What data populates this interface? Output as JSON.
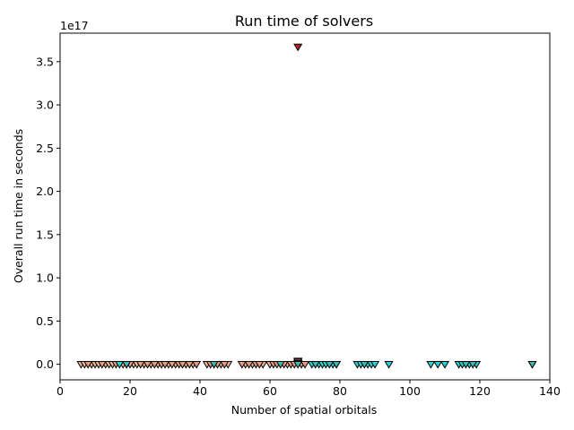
{
  "chart_data": {
    "type": "scatter",
    "title": "Run time of solvers",
    "xlabel": "Number of spatial orbitals",
    "ylabel": "Overall run time in seconds",
    "y_multiplier_label": "1e17",
    "xlim": [
      0,
      140
    ],
    "ylim": [
      -0.18,
      3.83
    ],
    "x_ticks": [
      0,
      20,
      40,
      60,
      80,
      100,
      120,
      140
    ],
    "y_ticks": [
      0.0,
      0.5,
      1.0,
      1.5,
      2.0,
      2.5,
      3.0,
      3.5
    ],
    "x_tick_labels": [
      "0",
      "20",
      "40",
      "60",
      "80",
      "100",
      "120",
      "140"
    ],
    "y_tick_labels": [
      "0.0",
      "0.5",
      "1.0",
      "1.5",
      "2.0",
      "2.5",
      "3.0",
      "3.5"
    ],
    "grid": false,
    "legend": "none",
    "marker": "triangle-down",
    "colors": {
      "light_salmon": "#f0b49a",
      "salmon": "#e39a80",
      "red_brown": "#c8553c",
      "dark_red": "#b42323",
      "cyan": "#2ad4d4",
      "teal": "#3fb8b2",
      "edge": "#000000"
    },
    "series": [
      {
        "color": "light_salmon",
        "points": [
          [
            6,
            0
          ],
          [
            7,
            0
          ],
          [
            9,
            0
          ],
          [
            10,
            0
          ],
          [
            11,
            0
          ],
          [
            13,
            0
          ],
          [
            14,
            0
          ],
          [
            15,
            0
          ],
          [
            18,
            0
          ],
          [
            19,
            0
          ],
          [
            21,
            0
          ],
          [
            22,
            0
          ],
          [
            24,
            0
          ],
          [
            26,
            0
          ],
          [
            28,
            0
          ],
          [
            31,
            0
          ],
          [
            33,
            0
          ],
          [
            36,
            0
          ],
          [
            38,
            0
          ],
          [
            42,
            0
          ],
          [
            44,
            0
          ],
          [
            46,
            0
          ],
          [
            48,
            0
          ],
          [
            53,
            0
          ],
          [
            55,
            0
          ],
          [
            58,
            0
          ],
          [
            60,
            0
          ],
          [
            65,
            0
          ],
          [
            68,
            0.037
          ]
        ]
      },
      {
        "color": "salmon",
        "points": [
          [
            8,
            0
          ],
          [
            12,
            0
          ],
          [
            16,
            0
          ],
          [
            20,
            0
          ],
          [
            23,
            0
          ],
          [
            25,
            0
          ],
          [
            27,
            0
          ],
          [
            29,
            0
          ],
          [
            30,
            0
          ],
          [
            32,
            0
          ],
          [
            34,
            0
          ],
          [
            35,
            0
          ],
          [
            37,
            0
          ],
          [
            39,
            0
          ],
          [
            43,
            0
          ],
          [
            45,
            0
          ],
          [
            47,
            0
          ],
          [
            52,
            0
          ],
          [
            54,
            0
          ],
          [
            56,
            0
          ],
          [
            57,
            0
          ],
          [
            61,
            0
          ],
          [
            62,
            0
          ],
          [
            64,
            0
          ],
          [
            66,
            0
          ],
          [
            67,
            0
          ],
          [
            68,
            0.027
          ],
          [
            69,
            0
          ],
          [
            70,
            0
          ]
        ]
      },
      {
        "color": "red_brown",
        "points": [
          [
            68,
            0.011
          ],
          [
            68,
            0.005
          ]
        ]
      },
      {
        "color": "dark_red",
        "points": [
          [
            68,
            3.67
          ]
        ]
      },
      {
        "color": "cyan",
        "points": [
          [
            17,
            0
          ],
          [
            72,
            0
          ],
          [
            74,
            0
          ],
          [
            75,
            0
          ],
          [
            76,
            0
          ],
          [
            78,
            0
          ],
          [
            79,
            0
          ],
          [
            85,
            0
          ],
          [
            86,
            0
          ],
          [
            88,
            0
          ],
          [
            89,
            0
          ],
          [
            90,
            0
          ],
          [
            94,
            0
          ],
          [
            106,
            0
          ],
          [
            108,
            0
          ],
          [
            110,
            0
          ],
          [
            114,
            0
          ],
          [
            115,
            0
          ],
          [
            117,
            0
          ],
          [
            119,
            0
          ],
          [
            135,
            0
          ]
        ]
      },
      {
        "color": "teal",
        "points": [
          [
            19,
            0
          ],
          [
            44,
            0
          ],
          [
            63,
            0
          ],
          [
            68,
            0
          ],
          [
            73,
            0
          ],
          [
            77,
            0
          ],
          [
            79,
            0
          ],
          [
            87,
            0
          ],
          [
            116,
            0
          ],
          [
            118,
            0
          ],
          [
            135,
            0
          ]
        ]
      }
    ]
  }
}
